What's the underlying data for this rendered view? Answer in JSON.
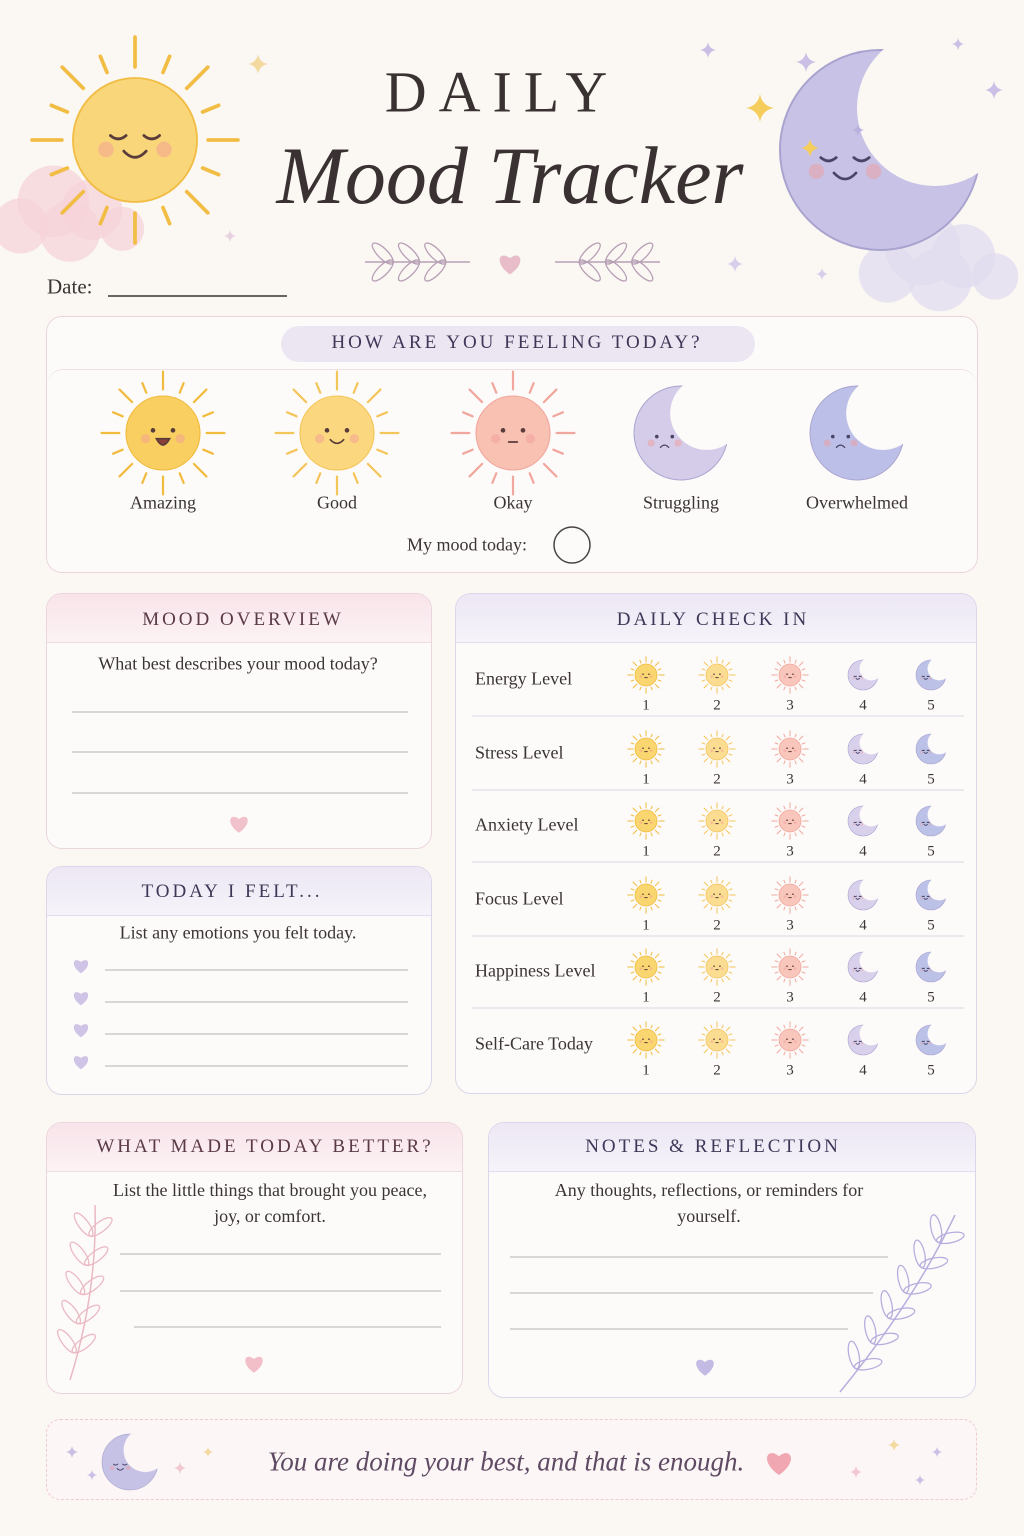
{
  "header": {
    "title_top": "DAILY",
    "title_script": "Mood Tracker",
    "date_label": "Date:"
  },
  "feeling": {
    "title": "HOW ARE YOU FEELING TODAY?",
    "moods": [
      "Amazing",
      "Good",
      "Okay",
      "Struggling",
      "Overwhelmed"
    ],
    "prompt": "My mood today:"
  },
  "overview": {
    "title": "MOOD OVERVIEW",
    "prompt": "What best describes your mood today?"
  },
  "felt": {
    "title": "TODAY I FELT...",
    "prompt": "List any emotions you felt today."
  },
  "check_in": {
    "title": "DAILY CHECK IN",
    "rows": [
      "Energy Level",
      "Stress Level",
      "Anxiety Level",
      "Focus Level",
      "Happiness Level",
      "Self-Care Today"
    ],
    "scale": [
      1,
      2,
      3,
      4,
      5
    ]
  },
  "better": {
    "title": "WHAT MADE TODAY BETTER?",
    "prompt": "List the little things that brought you peace, joy, or comfort."
  },
  "notes": {
    "title": "NOTES & REFLECTION",
    "prompt": "Any thoughts, reflections, or reminders for yourself."
  },
  "footer": {
    "quote": "You are doing your best, and that is enough."
  }
}
